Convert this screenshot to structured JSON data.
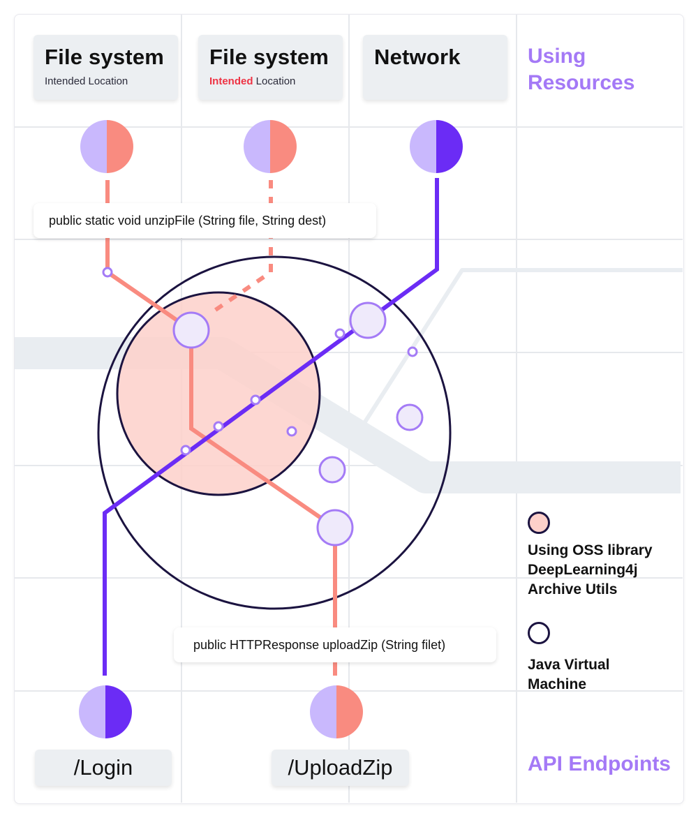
{
  "resources": {
    "heading_line1": "Using",
    "heading_line2": "Resources",
    "items": [
      {
        "title": "File system",
        "sub_prefix": "",
        "sub_rest": "Intended Location"
      },
      {
        "title": "File system",
        "sub_prefix": "Intended",
        "sub_rest": " Location"
      },
      {
        "title": "Network",
        "sub_prefix": "",
        "sub_rest": ""
      }
    ]
  },
  "signatures": {
    "unzip": "public static void unzipFile (String file, String dest)",
    "upload": "public HTTPResponse uploadZip (String filet)"
  },
  "endpoints": {
    "heading": "API Endpoints",
    "items": [
      "/Login",
      "/UploadZip"
    ]
  },
  "legend": {
    "oss_line1": "Using OSS library",
    "oss_line2": "DeepLearning4j",
    "oss_line3": "Archive Utils",
    "jvm_line1": "Java Virtual",
    "jvm_line2": "Machine"
  },
  "colors": {
    "salmon": "#f98b80",
    "violet": "#6b2cf5",
    "lavender": "#c9b8fd",
    "jvm_outline": "#1b1340",
    "oss_fill": "#fdd0ca",
    "node_fill": "#efeafb",
    "node_stroke": "#a47bf6",
    "grid": "#e6e8ec",
    "band": "#e9edf1"
  }
}
